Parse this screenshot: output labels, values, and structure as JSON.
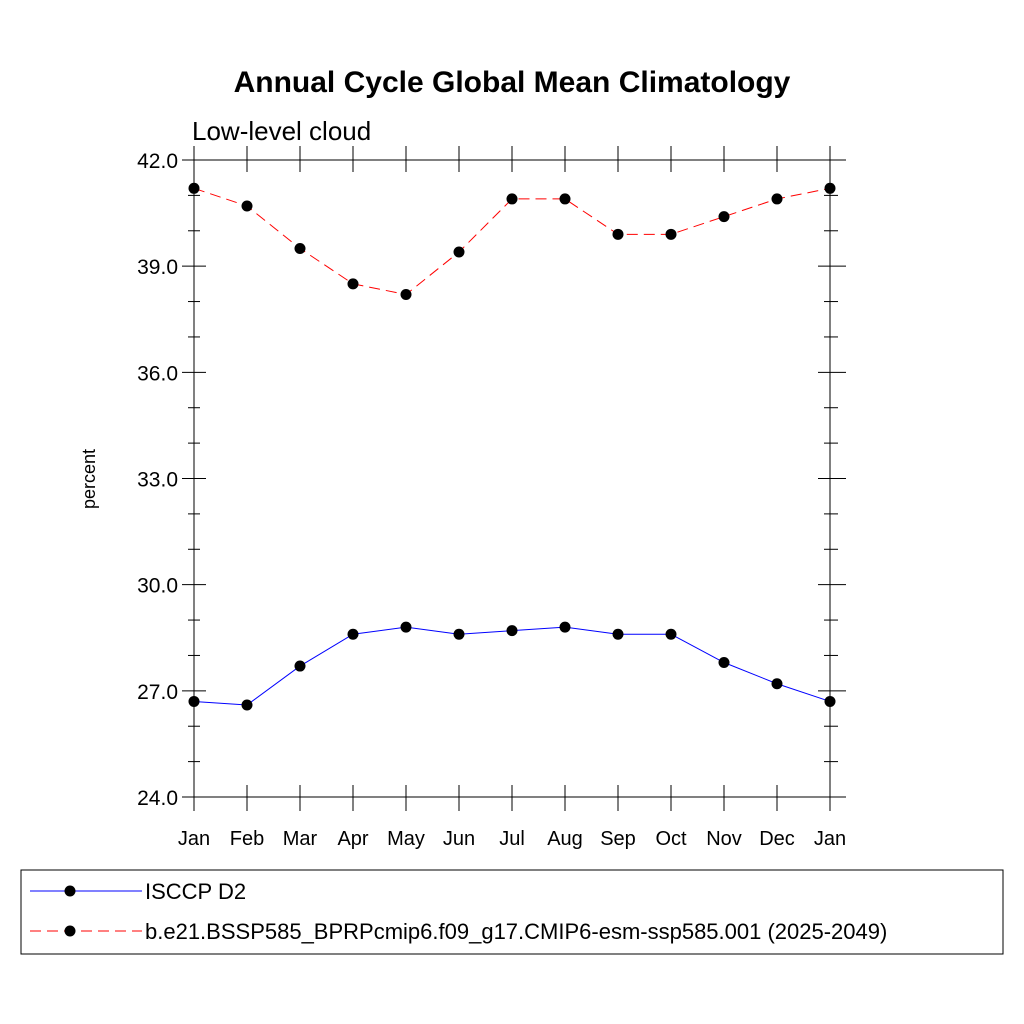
{
  "colors": {
    "series_isccp": "#0000ff",
    "series_model": "#ff0000",
    "marker": "#000000",
    "axis": "#000000",
    "background": "#ffffff"
  },
  "chart_data": {
    "type": "line",
    "title": "Annual Cycle Global Mean Climatology",
    "subtitle": "Low-level cloud",
    "xlabel": "",
    "ylabel": "percent",
    "categories": [
      "Jan",
      "Feb",
      "Mar",
      "Apr",
      "May",
      "Jun",
      "Jul",
      "Aug",
      "Sep",
      "Oct",
      "Nov",
      "Dec",
      "Jan"
    ],
    "ylim": [
      24.0,
      42.0
    ],
    "yticks": [
      "24.0",
      "27.0",
      "30.0",
      "33.0",
      "36.0",
      "39.0",
      "42.0"
    ],
    "ytick_values": [
      24.0,
      27.0,
      30.0,
      33.0,
      36.0,
      39.0,
      42.0
    ],
    "grid": false,
    "legend_position": "bottom",
    "series": [
      {
        "name": "ISCCP D2",
        "style": "solid",
        "color": "#0000ff",
        "values": [
          26.7,
          26.6,
          27.7,
          28.6,
          28.8,
          28.6,
          28.7,
          28.8,
          28.6,
          28.6,
          27.8,
          27.2,
          26.7
        ]
      },
      {
        "name": "b.e21.BSSP585_BPRPcmip6.f09_g17.CMIP6-esm-ssp585.001 (2025-2049)",
        "style": "dashed",
        "color": "#ff0000",
        "values": [
          41.2,
          40.7,
          39.5,
          38.5,
          38.2,
          39.4,
          40.9,
          40.9,
          39.9,
          39.9,
          40.4,
          40.9,
          41.2
        ]
      }
    ]
  }
}
